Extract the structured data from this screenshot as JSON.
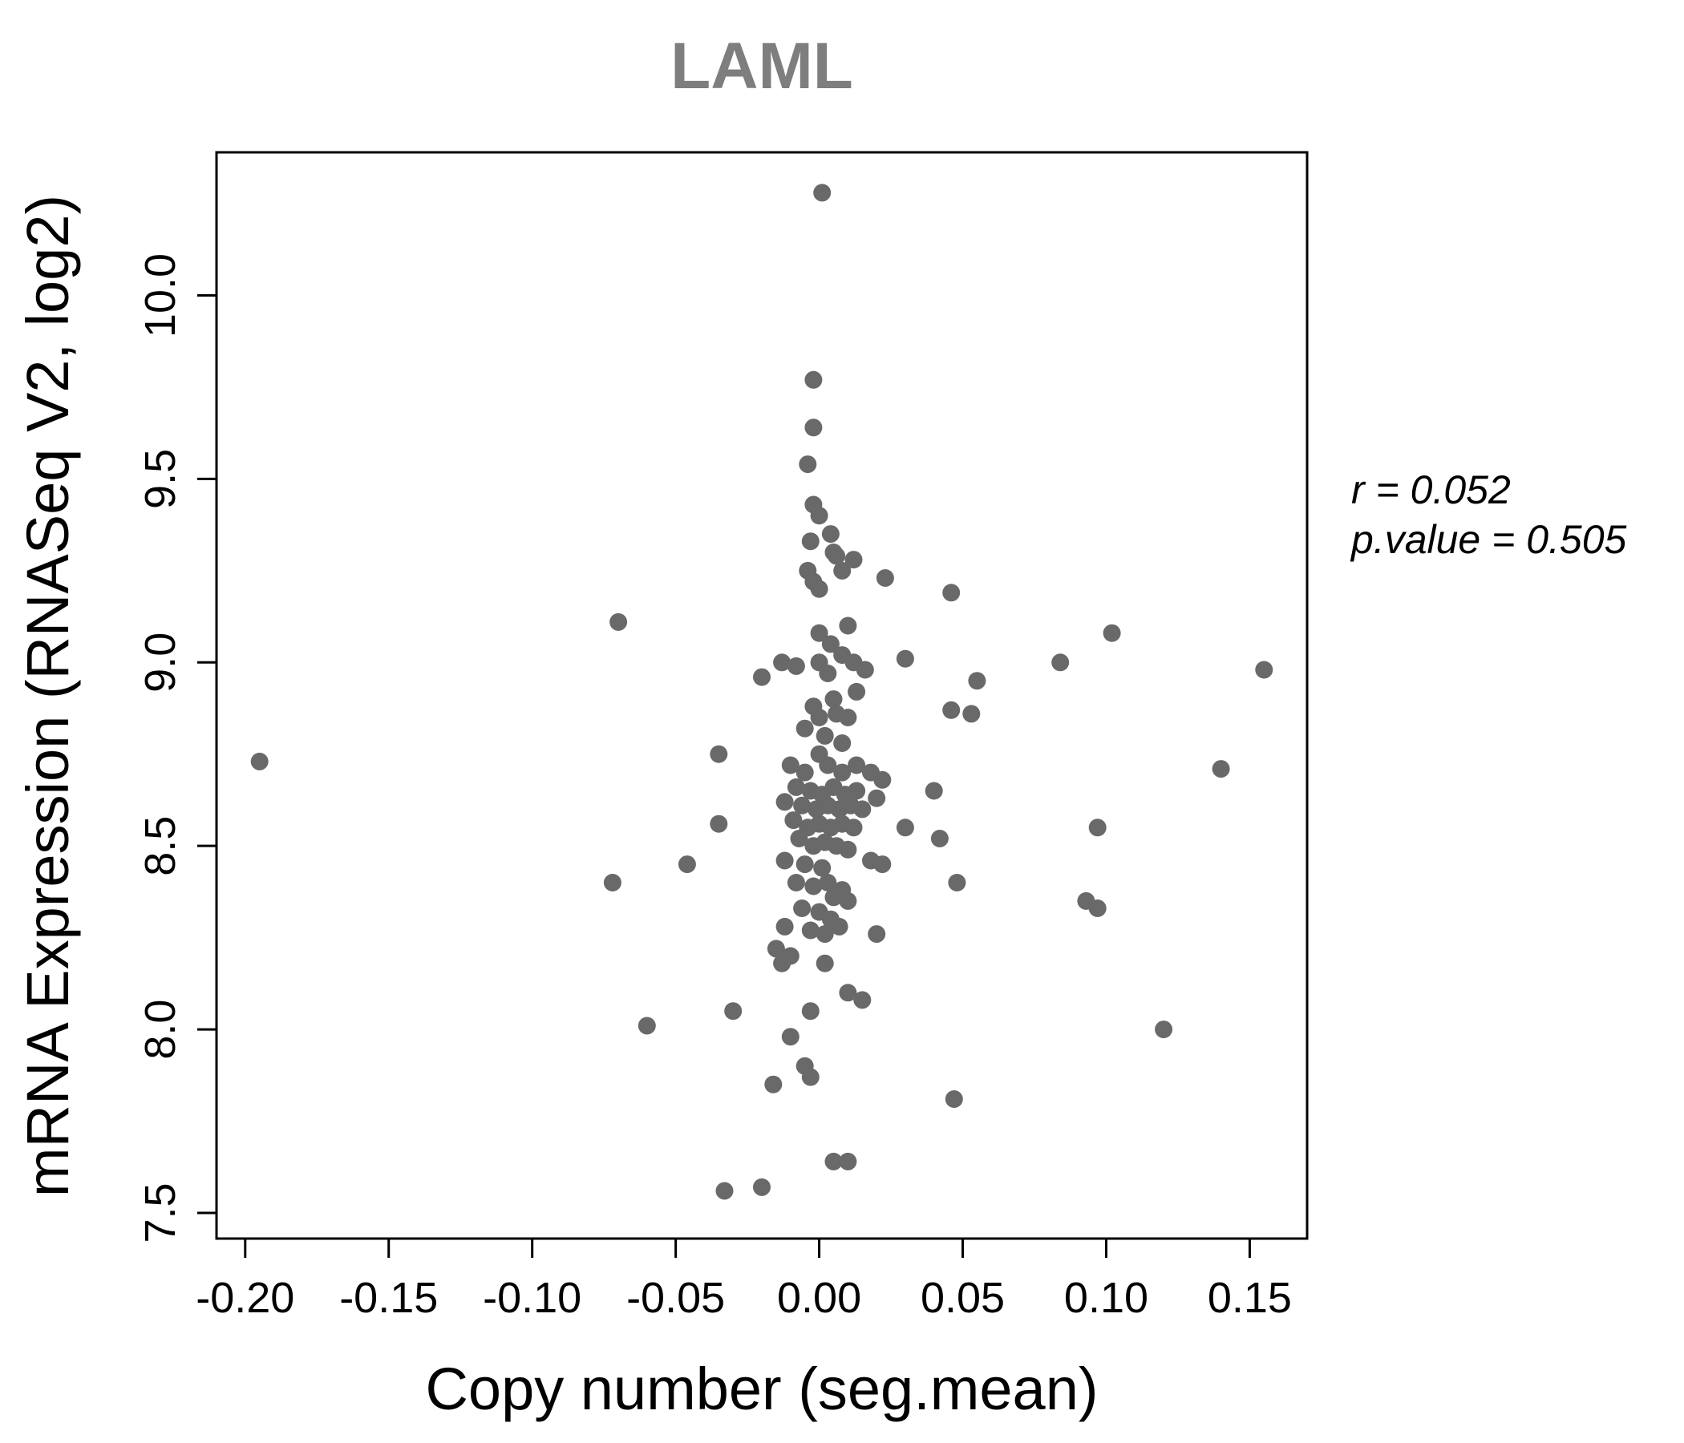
{
  "chart_data": {
    "type": "scatter",
    "title": "LAML",
    "xlabel": "Copy number (seg.mean)",
    "ylabel": "mRNA Expression (RNASeq V2, log2)",
    "annotation": {
      "r": "r = 0.052",
      "p": "p.value = 0.505"
    },
    "point_color": "#696969",
    "title_color": "#7e7e7e",
    "axis_color": "#000000",
    "xlim": [
      -0.21,
      0.17
    ],
    "ylim": [
      7.43,
      10.39
    ],
    "xticks": {
      "values": [
        -0.2,
        -0.15,
        -0.1,
        -0.05,
        0.0,
        0.05,
        0.1,
        0.15
      ],
      "labels": [
        "-0.20",
        "-0.15",
        "-0.10",
        "-0.05",
        "0.00",
        "0.05",
        "0.10",
        "0.15"
      ]
    },
    "yticks": {
      "values": [
        7.5,
        8.0,
        8.5,
        9.0,
        9.5,
        10.0
      ],
      "labels": [
        "7.5",
        "8.0",
        "8.5",
        "9.0",
        "9.5",
        "10.0"
      ]
    },
    "legend": "none",
    "grid": false,
    "points": [
      [
        0.001,
        10.28
      ],
      [
        -0.002,
        9.77
      ],
      [
        -0.002,
        9.64
      ],
      [
        -0.004,
        9.54
      ],
      [
        -0.002,
        9.43
      ],
      [
        0.0,
        9.4
      ],
      [
        -0.003,
        9.33
      ],
      [
        0.004,
        9.35
      ],
      [
        -0.004,
        9.25
      ],
      [
        -0.002,
        9.22
      ],
      [
        0.0,
        9.2
      ],
      [
        0.006,
        9.29
      ],
      [
        0.008,
        9.25
      ],
      [
        0.005,
        9.3
      ],
      [
        0.012,
        9.28
      ],
      [
        0.023,
        9.23
      ],
      [
        0.046,
        9.19
      ],
      [
        -0.07,
        9.11
      ],
      [
        0.0,
        9.08
      ],
      [
        0.004,
        9.05
      ],
      [
        0.01,
        9.1
      ],
      [
        -0.013,
        9.0
      ],
      [
        -0.008,
        8.99
      ],
      [
        0.0,
        9.0
      ],
      [
        0.003,
        8.97
      ],
      [
        0.008,
        9.02
      ],
      [
        0.012,
        9.0
      ],
      [
        0.016,
        8.98
      ],
      [
        0.03,
        9.01
      ],
      [
        0.084,
        9.0
      ],
      [
        0.102,
        9.08
      ],
      [
        0.155,
        8.98
      ],
      [
        -0.02,
        8.96
      ],
      [
        0.055,
        8.95
      ],
      [
        0.046,
        8.87
      ],
      [
        0.053,
        8.86
      ],
      [
        0.013,
        8.92
      ],
      [
        0.005,
        8.9
      ],
      [
        -0.002,
        8.88
      ],
      [
        0.0,
        8.85
      ],
      [
        0.006,
        8.86
      ],
      [
        0.01,
        8.85
      ],
      [
        -0.005,
        8.82
      ],
      [
        0.002,
        8.8
      ],
      [
        0.008,
        8.78
      ],
      [
        0.0,
        8.75
      ],
      [
        -0.035,
        8.75
      ],
      [
        -0.195,
        8.73
      ],
      [
        0.14,
        8.71
      ],
      [
        -0.01,
        8.72
      ],
      [
        -0.005,
        8.7
      ],
      [
        0.003,
        8.72
      ],
      [
        0.008,
        8.7
      ],
      [
        0.013,
        8.72
      ],
      [
        0.018,
        8.7
      ],
      [
        0.022,
        8.68
      ],
      [
        -0.008,
        8.66
      ],
      [
        -0.003,
        8.65
      ],
      [
        0.001,
        8.64
      ],
      [
        0.005,
        8.66
      ],
      [
        0.009,
        8.64
      ],
      [
        0.013,
        8.65
      ],
      [
        0.04,
        8.65
      ],
      [
        0.02,
        8.63
      ],
      [
        -0.012,
        8.62
      ],
      [
        -0.006,
        8.61
      ],
      [
        -0.001,
        8.6
      ],
      [
        0.003,
        8.61
      ],
      [
        0.007,
        8.6
      ],
      [
        0.011,
        8.61
      ],
      [
        0.015,
        8.6
      ],
      [
        -0.035,
        8.56
      ],
      [
        -0.009,
        8.57
      ],
      [
        -0.004,
        8.55
      ],
      [
        0.0,
        8.56
      ],
      [
        0.004,
        8.55
      ],
      [
        0.008,
        8.56
      ],
      [
        0.012,
        8.55
      ],
      [
        0.03,
        8.55
      ],
      [
        0.097,
        8.55
      ],
      [
        0.042,
        8.52
      ],
      [
        -0.007,
        8.52
      ],
      [
        -0.002,
        8.5
      ],
      [
        0.002,
        8.51
      ],
      [
        0.006,
        8.5
      ],
      [
        0.01,
        8.49
      ],
      [
        -0.046,
        8.45
      ],
      [
        -0.012,
        8.46
      ],
      [
        -0.005,
        8.45
      ],
      [
        0.001,
        8.44
      ],
      [
        0.018,
        8.46
      ],
      [
        0.022,
        8.45
      ],
      [
        -0.072,
        8.4
      ],
      [
        0.048,
        8.4
      ],
      [
        -0.008,
        8.4
      ],
      [
        -0.002,
        8.39
      ],
      [
        0.003,
        8.4
      ],
      [
        0.008,
        8.38
      ],
      [
        0.005,
        8.36
      ],
      [
        0.01,
        8.35
      ],
      [
        0.093,
        8.35
      ],
      [
        0.097,
        8.33
      ],
      [
        -0.006,
        8.33
      ],
      [
        0.0,
        8.32
      ],
      [
        0.004,
        8.3
      ],
      [
        -0.012,
        8.28
      ],
      [
        -0.003,
        8.27
      ],
      [
        0.002,
        8.26
      ],
      [
        0.007,
        8.28
      ],
      [
        0.02,
        8.26
      ],
      [
        -0.015,
        8.22
      ],
      [
        -0.01,
        8.2
      ],
      [
        -0.013,
        8.18
      ],
      [
        0.002,
        8.18
      ],
      [
        0.01,
        8.1
      ],
      [
        0.015,
        8.08
      ],
      [
        -0.003,
        8.05
      ],
      [
        -0.03,
        8.05
      ],
      [
        -0.01,
        7.98
      ],
      [
        -0.06,
        8.01
      ],
      [
        0.12,
        8.0
      ],
      [
        -0.005,
        7.9
      ],
      [
        -0.003,
        7.87
      ],
      [
        -0.016,
        7.85
      ],
      [
        0.047,
        7.81
      ],
      [
        0.005,
        7.64
      ],
      [
        0.01,
        7.64
      ],
      [
        -0.033,
        7.56
      ],
      [
        -0.02,
        7.57
      ]
    ]
  }
}
